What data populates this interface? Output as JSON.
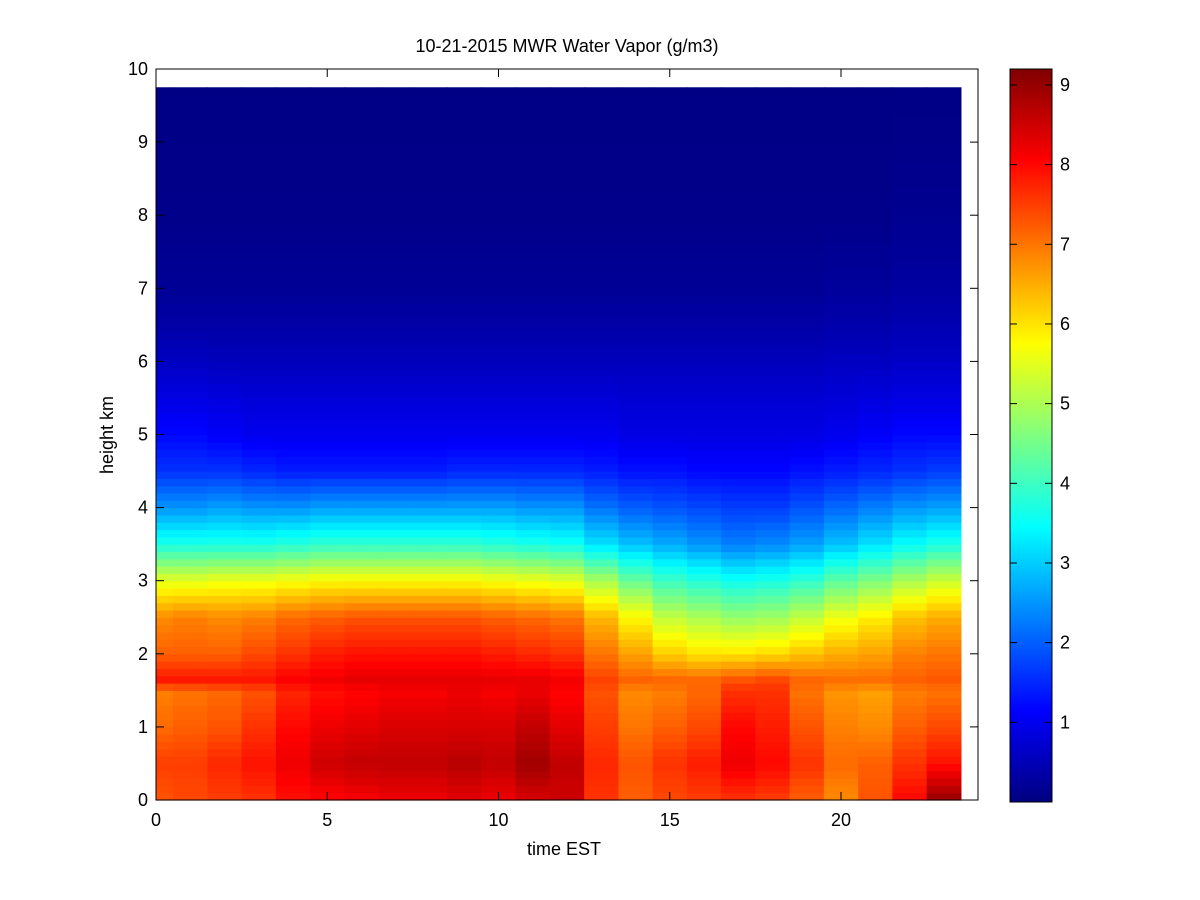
{
  "chart_data": {
    "type": "heatmap",
    "title": "10-21-2015 MWR Water Vapor (g/m3)",
    "xlabel": "time EST",
    "ylabel": "height km",
    "xlim": [
      0,
      24
    ],
    "ylim": [
      0,
      10
    ],
    "x_ticks": [
      "0",
      "5",
      "10",
      "15",
      "20"
    ],
    "y_ticks": [
      "0",
      "1",
      "2",
      "3",
      "4",
      "5",
      "6",
      "7",
      "8",
      "9",
      "10"
    ],
    "colorbar": {
      "range": [
        0,
        9.2
      ],
      "ticks": [
        "1",
        "2",
        "3",
        "4",
        "5",
        "6",
        "7",
        "8",
        "9"
      ],
      "colormap": "jet"
    },
    "x_columns": [
      0,
      1,
      2,
      3,
      4,
      5,
      6,
      7,
      8,
      9,
      10,
      11,
      12,
      13,
      14,
      15,
      16,
      17,
      18,
      19,
      20,
      21,
      22,
      23
    ],
    "data_height_top": 9.75,
    "profile_heights": [
      0,
      0.5,
      1.0,
      1.5,
      1.62,
      2.0,
      2.5,
      3.0,
      3.5,
      4.0,
      4.5,
      5.0,
      5.5,
      6.0,
      6.5,
      7.0,
      8.0,
      9.75
    ],
    "profiles": [
      [
        7.3,
        7.5,
        7.1,
        6.9,
        7.9,
        7.2,
        6.8,
        5.5,
        3.7,
        2.5,
        1.6,
        1.2,
        0.9,
        0.6,
        0.35,
        0.2,
        0.1,
        0.05
      ],
      [
        7.4,
        7.5,
        7.2,
        7.0,
        7.9,
        7.2,
        6.9,
        5.5,
        3.7,
        2.5,
        1.6,
        1.2,
        0.9,
        0.6,
        0.35,
        0.2,
        0.1,
        0.05
      ],
      [
        7.5,
        7.7,
        7.3,
        7.1,
        7.9,
        7.2,
        6.8,
        5.6,
        3.7,
        2.6,
        1.6,
        1.1,
        0.85,
        0.55,
        0.35,
        0.2,
        0.1,
        0.05
      ],
      [
        7.6,
        7.9,
        7.6,
        7.3,
        7.9,
        7.4,
        6.9,
        5.6,
        3.7,
        2.5,
        1.5,
        1.0,
        0.8,
        0.55,
        0.35,
        0.2,
        0.1,
        0.05
      ],
      [
        7.9,
        8.2,
        8.0,
        7.7,
        8.1,
        7.6,
        7.1,
        5.7,
        3.8,
        2.5,
        1.4,
        1.0,
        0.8,
        0.55,
        0.35,
        0.2,
        0.1,
        0.05
      ],
      [
        8.0,
        8.5,
        8.2,
        7.9,
        8.2,
        7.8,
        7.2,
        5.8,
        3.9,
        2.6,
        1.4,
        1.0,
        0.8,
        0.55,
        0.35,
        0.2,
        0.1,
        0.05
      ],
      [
        8.1,
        8.6,
        8.3,
        8.0,
        8.3,
        7.9,
        7.3,
        5.8,
        3.9,
        2.6,
        1.4,
        1.0,
        0.8,
        0.55,
        0.35,
        0.2,
        0.1,
        0.05
      ],
      [
        8.2,
        8.6,
        8.4,
        8.1,
        8.3,
        7.9,
        7.3,
        5.8,
        3.9,
        2.6,
        1.4,
        1.0,
        0.8,
        0.55,
        0.35,
        0.2,
        0.1,
        0.05
      ],
      [
        8.2,
        8.6,
        8.4,
        8.1,
        8.3,
        7.9,
        7.3,
        5.8,
        3.9,
        2.6,
        1.4,
        1.0,
        0.8,
        0.55,
        0.35,
        0.2,
        0.1,
        0.05
      ],
      [
        8.3,
        8.7,
        8.4,
        8.2,
        8.3,
        7.9,
        7.3,
        5.8,
        3.9,
        2.6,
        1.5,
        1.0,
        0.8,
        0.55,
        0.35,
        0.2,
        0.1,
        0.05
      ],
      [
        8.2,
        8.6,
        8.4,
        8.1,
        8.3,
        7.8,
        7.2,
        5.7,
        3.8,
        2.6,
        1.5,
        1.0,
        0.8,
        0.55,
        0.35,
        0.2,
        0.1,
        0.05
      ],
      [
        8.4,
        8.9,
        8.6,
        8.2,
        8.3,
        7.7,
        7.1,
        5.6,
        3.7,
        2.5,
        1.5,
        1.0,
        0.8,
        0.55,
        0.35,
        0.2,
        0.1,
        0.05
      ],
      [
        8.5,
        8.6,
        8.3,
        8.0,
        8.2,
        7.6,
        7.0,
        5.5,
        3.6,
        2.5,
        1.5,
        1.0,
        0.8,
        0.55,
        0.35,
        0.2,
        0.1,
        0.05
      ],
      [
        7.6,
        7.7,
        7.5,
        7.3,
        7.5,
        7.0,
        6.4,
        5.0,
        3.2,
        2.2,
        1.4,
        1.0,
        0.8,
        0.55,
        0.35,
        0.2,
        0.1,
        0.05
      ],
      [
        7.2,
        7.3,
        7.0,
        6.8,
        7.2,
        6.6,
        5.8,
        4.4,
        2.9,
        2.0,
        1.3,
        0.9,
        0.75,
        0.55,
        0.35,
        0.2,
        0.1,
        0.05
      ],
      [
        7.4,
        7.6,
        7.2,
        6.9,
        7.2,
        6.2,
        5.2,
        4.0,
        2.7,
        1.9,
        1.3,
        0.9,
        0.75,
        0.55,
        0.35,
        0.2,
        0.1,
        0.05
      ],
      [
        7.5,
        7.8,
        7.4,
        7.1,
        7.2,
        6.0,
        5.0,
        3.8,
        2.5,
        1.8,
        1.2,
        0.9,
        0.75,
        0.55,
        0.35,
        0.2,
        0.1,
        0.05
      ],
      [
        7.6,
        8.2,
        8.0,
        7.6,
        7.4,
        6.0,
        4.8,
        3.6,
        2.3,
        1.7,
        1.2,
        0.9,
        0.75,
        0.55,
        0.35,
        0.2,
        0.1,
        0.05
      ],
      [
        7.5,
        8.0,
        7.8,
        7.6,
        7.5,
        6.1,
        4.9,
        3.7,
        2.4,
        1.7,
        1.2,
        0.9,
        0.75,
        0.55,
        0.35,
        0.2,
        0.1,
        0.05
      ],
      [
        7.2,
        7.6,
        7.3,
        7.0,
        7.2,
        6.3,
        5.2,
        3.9,
        2.6,
        1.9,
        1.3,
        0.9,
        0.75,
        0.55,
        0.35,
        0.2,
        0.1,
        0.05
      ],
      [
        6.8,
        7.1,
        6.9,
        6.7,
        7.1,
        6.5,
        5.6,
        4.3,
        2.9,
        2.1,
        1.4,
        1.0,
        0.8,
        0.6,
        0.4,
        0.25,
        0.1,
        0.05
      ],
      [
        7.3,
        7.2,
        6.8,
        6.6,
        7.1,
        6.6,
        5.9,
        4.6,
        3.2,
        2.3,
        1.5,
        1.1,
        0.85,
        0.6,
        0.4,
        0.25,
        0.1,
        0.05
      ],
      [
        8.0,
        7.6,
        7.2,
        6.9,
        7.2,
        6.9,
        6.3,
        5.0,
        3.5,
        2.5,
        1.6,
        1.2,
        0.9,
        0.65,
        0.45,
        0.3,
        0.15,
        0.05
      ],
      [
        9.0,
        7.9,
        7.4,
        7.0,
        7.3,
        7.0,
        6.5,
        5.3,
        3.7,
        2.6,
        1.7,
        1.2,
        0.9,
        0.65,
        0.45,
        0.3,
        0.15,
        0.05
      ]
    ]
  }
}
